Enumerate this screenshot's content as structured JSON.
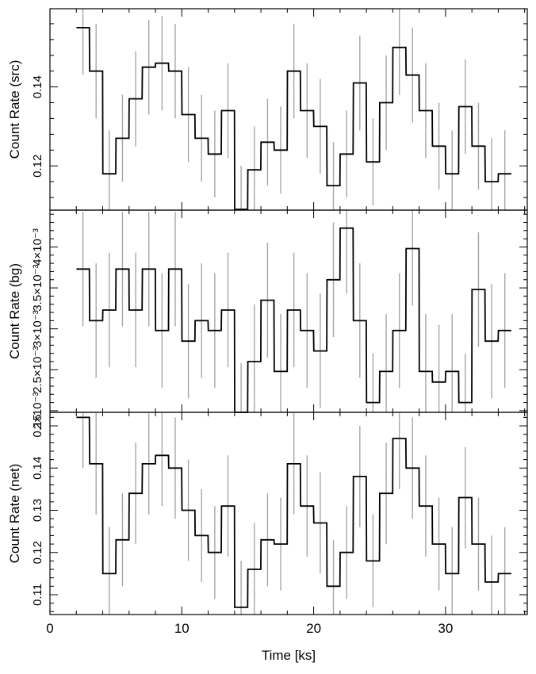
{
  "chart_data": [
    {
      "type": "line",
      "xlabel": "Time [ks]",
      "ylabel": "Count Rate (src)",
      "xlim": [
        0,
        36.2
      ],
      "ylim": [
        0.1088,
        0.1598
      ],
      "yticks": [
        0.12,
        0.14
      ],
      "ytick_labels": [
        "0.12",
        "0.14"
      ],
      "xticks": [
        0,
        10,
        20,
        30
      ],
      "xtick_labels": [
        "0",
        "10",
        "20",
        "30"
      ],
      "bin_width": 0.98,
      "x": [
        2.5,
        3.5,
        4.5,
        5.5,
        6.5,
        7.5,
        8.5,
        9.5,
        10.5,
        11.5,
        12.5,
        13.5,
        14.5,
        15.5,
        16.5,
        17.5,
        18.5,
        19.5,
        20.5,
        21.5,
        22.5,
        23.5,
        24.5,
        25.5,
        26.5,
        27.5,
        28.5,
        29.5,
        30.5,
        31.5,
        32.5,
        33.5,
        34.5
      ],
      "values": [
        0.155,
        0.144,
        0.118,
        0.127,
        0.137,
        0.145,
        0.146,
        0.144,
        0.133,
        0.127,
        0.123,
        0.134,
        0.109,
        0.119,
        0.126,
        0.124,
        0.144,
        0.134,
        0.13,
        0.115,
        0.123,
        0.141,
        0.121,
        0.136,
        0.15,
        0.143,
        0.134,
        0.125,
        0.118,
        0.135,
        0.125,
        0.116,
        0.118
      ],
      "err": [
        0.012,
        0.012,
        0.011,
        0.011,
        0.012,
        0.012,
        0.012,
        0.012,
        0.012,
        0.011,
        0.011,
        0.012,
        0.011,
        0.011,
        0.011,
        0.011,
        0.012,
        0.012,
        0.012,
        0.011,
        0.011,
        0.012,
        0.011,
        0.012,
        0.012,
        0.012,
        0.012,
        0.011,
        0.011,
        0.012,
        0.011,
        0.011,
        0.011
      ],
      "grid": false
    },
    {
      "type": "line",
      "xlabel": "",
      "ylabel": "Count Rate (bg)",
      "xlim": [
        0,
        36.2
      ],
      "ylim": [
        0.00198,
        0.00445
      ],
      "yticks": [
        0.002,
        0.0025,
        0.003,
        0.0035,
        0.004
      ],
      "ytick_labels": [
        "2×10⁻³",
        "2.5×10⁻³",
        "3×10⁻³",
        "3.5×10⁻³",
        "4×10⁻³"
      ],
      "xticks": [
        0,
        10,
        20,
        30
      ],
      "bin_width": 0.98,
      "x": [
        2.5,
        3.5,
        4.5,
        5.5,
        6.5,
        7.5,
        8.5,
        9.5,
        10.5,
        11.5,
        12.5,
        13.5,
        14.5,
        15.5,
        16.5,
        17.5,
        18.5,
        19.5,
        20.5,
        21.5,
        22.5,
        23.5,
        24.5,
        25.5,
        26.5,
        27.5,
        28.5,
        29.5,
        30.5,
        31.5,
        32.5,
        33.5,
        34.5
      ],
      "values": [
        0.00373,
        0.0031,
        0.00323,
        0.00373,
        0.00323,
        0.00373,
        0.00298,
        0.00373,
        0.00285,
        0.0031,
        0.00298,
        0.00323,
        0.00198,
        0.0026,
        0.00335,
        0.00248,
        0.00323,
        0.00298,
        0.00273,
        0.0036,
        0.00423,
        0.0031,
        0.0021,
        0.00248,
        0.00298,
        0.00398,
        0.00248,
        0.00235,
        0.00248,
        0.0021,
        0.00348,
        0.00285,
        0.00298
      ],
      "err": [
        0.0007,
        0.0007,
        0.0007,
        0.0007,
        0.0007,
        0.0007,
        0.0007,
        0.0007,
        0.0007,
        0.0007,
        0.0007,
        0.0007,
        0.0006,
        0.0007,
        0.0007,
        0.0007,
        0.0007,
        0.0007,
        0.0007,
        0.0007,
        0.0008,
        0.0007,
        0.0006,
        0.0007,
        0.0007,
        0.0007,
        0.0007,
        0.0007,
        0.0007,
        0.0006,
        0.0007,
        0.0007,
        0.0007
      ],
      "grid": false
    },
    {
      "type": "line",
      "xlabel": "Time [ks]",
      "ylabel": "Count Rate (net)",
      "xlim": [
        0,
        36.2
      ],
      "ylim": [
        0.1053,
        0.1532
      ],
      "yticks": [
        0.11,
        0.12,
        0.13,
        0.14,
        0.15
      ],
      "ytick_labels": [
        "0.11",
        "0.12",
        "0.13",
        "0.14",
        "0.15"
      ],
      "xticks": [
        0,
        10,
        20,
        30
      ],
      "xtick_labels": [
        "0",
        "10",
        "20",
        "30"
      ],
      "bin_width": 0.98,
      "x": [
        2.5,
        3.5,
        4.5,
        5.5,
        6.5,
        7.5,
        8.5,
        9.5,
        10.5,
        11.5,
        12.5,
        13.5,
        14.5,
        15.5,
        16.5,
        17.5,
        18.5,
        19.5,
        20.5,
        21.5,
        22.5,
        23.5,
        24.5,
        25.5,
        26.5,
        27.5,
        28.5,
        29.5,
        30.5,
        31.5,
        32.5,
        33.5,
        34.5
      ],
      "values": [
        0.152,
        0.141,
        0.115,
        0.123,
        0.134,
        0.141,
        0.143,
        0.14,
        0.13,
        0.124,
        0.12,
        0.131,
        0.107,
        0.116,
        0.123,
        0.122,
        0.141,
        0.131,
        0.127,
        0.112,
        0.12,
        0.138,
        0.118,
        0.134,
        0.147,
        0.14,
        0.131,
        0.122,
        0.115,
        0.133,
        0.122,
        0.113,
        0.115
      ],
      "err": [
        0.012,
        0.012,
        0.011,
        0.011,
        0.012,
        0.012,
        0.012,
        0.012,
        0.012,
        0.011,
        0.011,
        0.012,
        0.011,
        0.011,
        0.011,
        0.011,
        0.012,
        0.012,
        0.012,
        0.011,
        0.011,
        0.012,
        0.011,
        0.012,
        0.012,
        0.012,
        0.012,
        0.011,
        0.011,
        0.012,
        0.011,
        0.011,
        0.011
      ],
      "grid": false
    }
  ],
  "style": {
    "step_color": "#000000",
    "errorbar_color": "#a6a6a6",
    "axis_color": "#000000"
  }
}
